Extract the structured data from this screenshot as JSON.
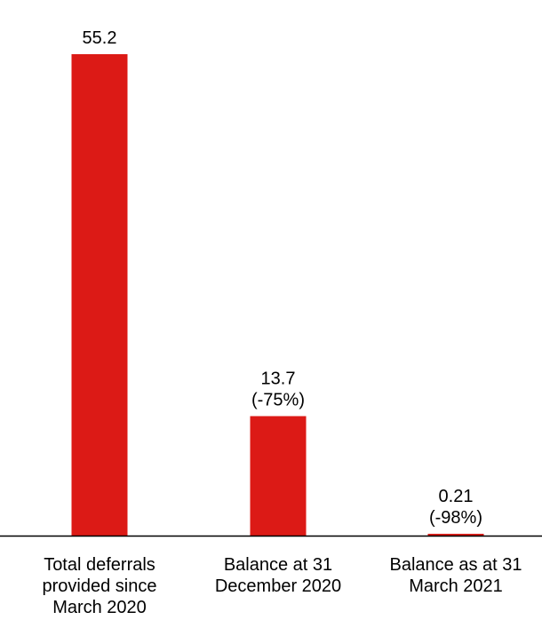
{
  "chart_data": {
    "type": "bar",
    "categories": [
      [
        "Total deferrals",
        "provided since",
        "March 2020"
      ],
      [
        "Balance at 31",
        "December 2020"
      ],
      [
        "Balance as at 31",
        "March 2021"
      ]
    ],
    "values": [
      55.2,
      13.7,
      0.21
    ],
    "data_labels": [
      [
        "55.2"
      ],
      [
        "13.7",
        "(-75%)"
      ],
      [
        "0.21",
        "(-98%)"
      ]
    ],
    "title": "",
    "xlabel": "",
    "ylabel": "",
    "ylim": [
      0,
      55.2
    ],
    "grid": false,
    "legend": "none",
    "colors": {
      "bar": "#dc1a16",
      "axis": "#000000",
      "text": "#000000"
    }
  }
}
